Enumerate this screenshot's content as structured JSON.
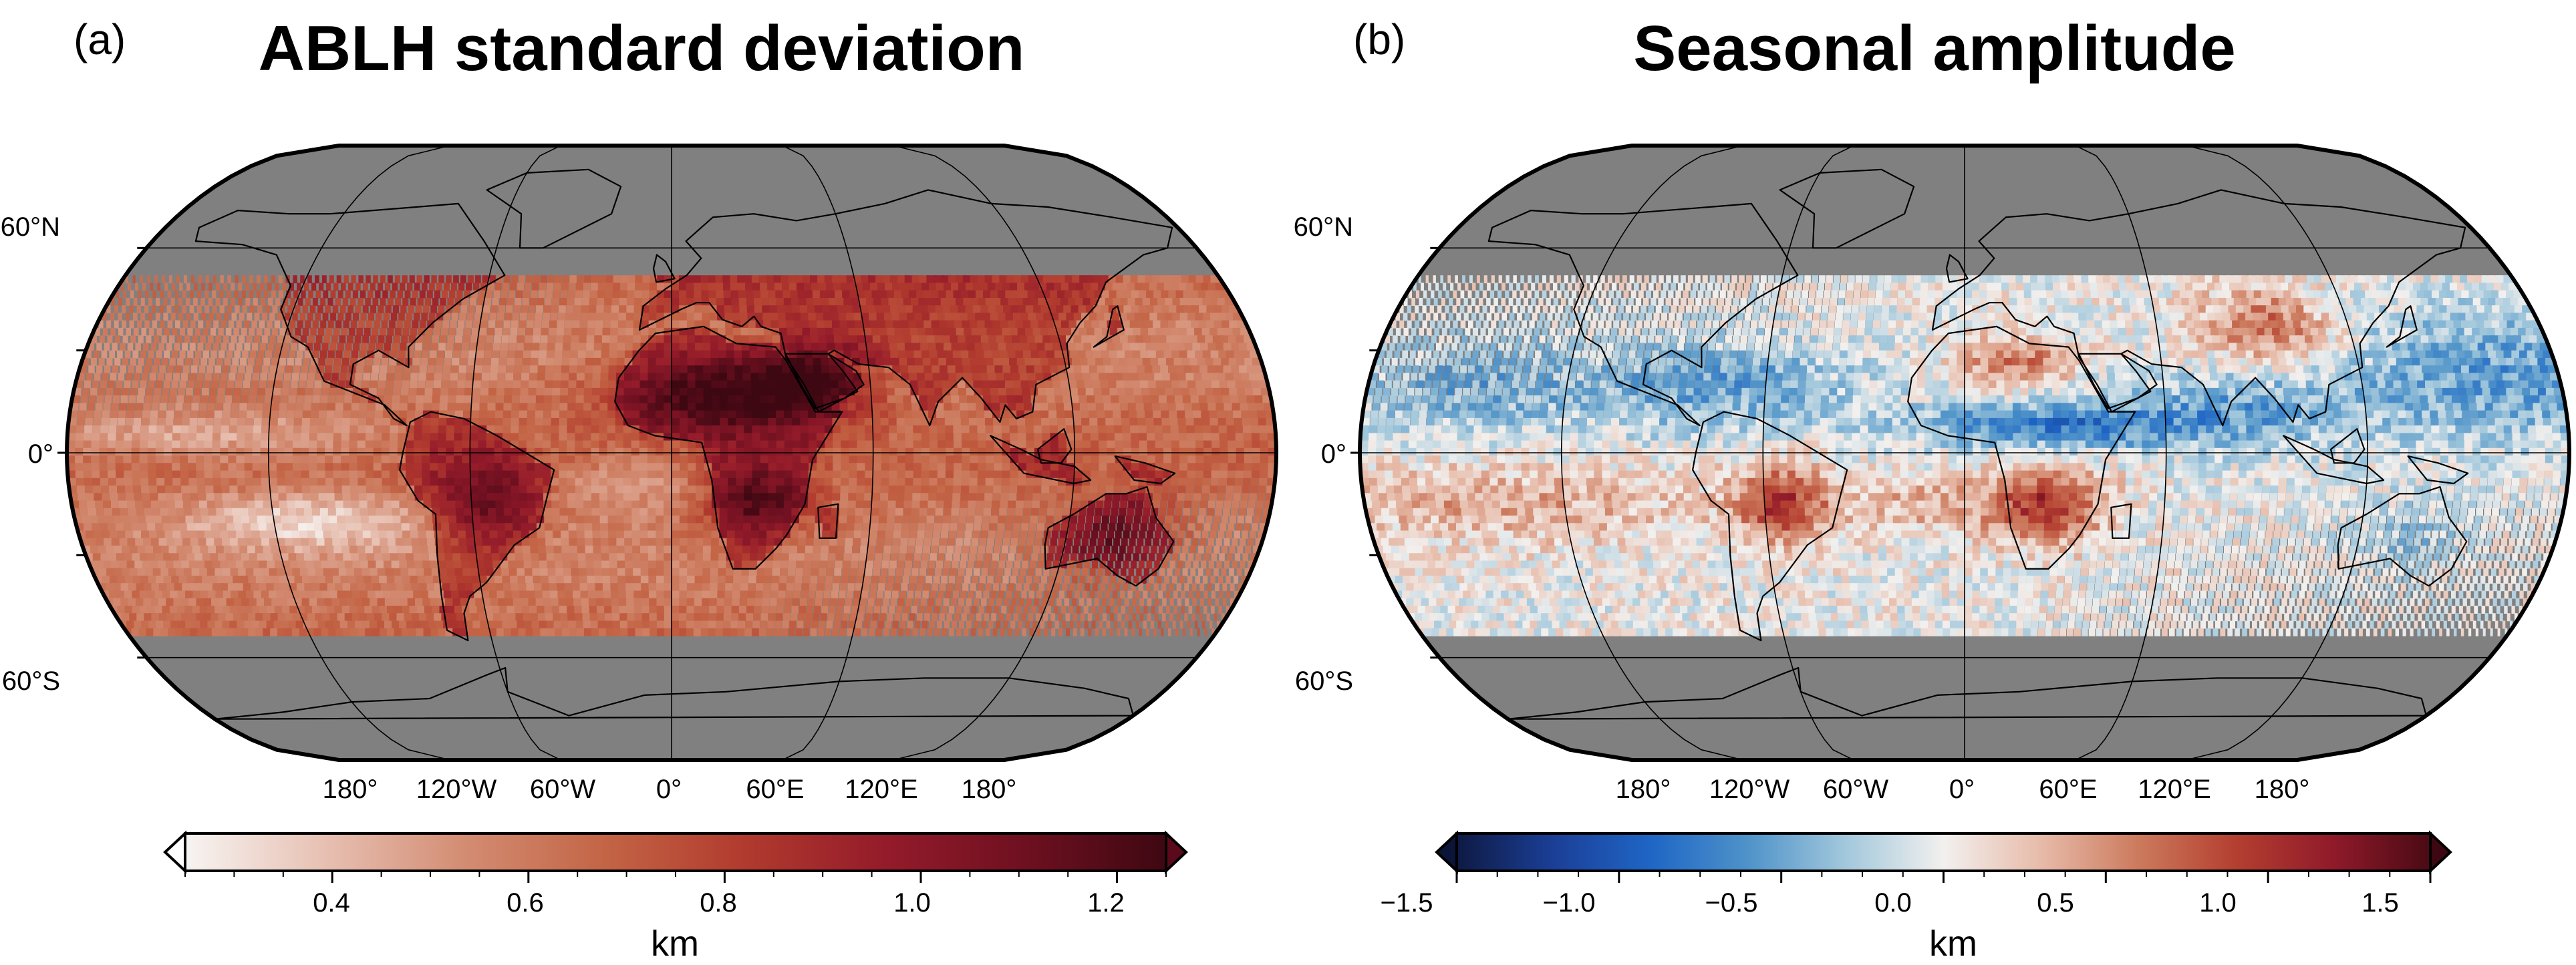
{
  "panels": [
    {
      "letter": "(a)",
      "title": "ABLH standard deviation",
      "lat_labels": [
        "60°N",
        "0°",
        "60°S"
      ],
      "lon_labels": [
        "180°",
        "120°W",
        "60°W",
        "0°",
        "60°E",
        "120°E",
        "180°"
      ],
      "colorbar": {
        "colormap": "white-to-darkred",
        "colors": [
          "#f7f4f2",
          "#e7c0b2",
          "#d38c72",
          "#c36445",
          "#b13a2e",
          "#941b2a",
          "#6e1020",
          "#3e0812"
        ],
        "min": 0.25,
        "max": 1.25,
        "ticks": [
          "0.4",
          "0.6",
          "0.8",
          "1.0",
          "1.2"
        ],
        "tick_values": [
          0.4,
          0.6,
          0.8,
          1.0,
          1.2
        ],
        "extend_low_color": "#ffffff",
        "extend_high_color": "#5a0a1a",
        "unit": "km"
      },
      "field": "std"
    },
    {
      "letter": "(b)",
      "title": "Seasonal amplitude",
      "lat_labels": [
        "60°N",
        "0°",
        "60°S"
      ],
      "lon_labels": [
        "180°",
        "120°W",
        "60°W",
        "0°",
        "60°E",
        "120°E",
        "180°"
      ],
      "colorbar": {
        "colormap": "diverging-blue-red",
        "colors": [
          "#0e1a44",
          "#1b3f97",
          "#1f66c6",
          "#4f93c9",
          "#a3c8dc",
          "#f2f0ee",
          "#e7bba9",
          "#cc7a5d",
          "#b43f30",
          "#901a2a",
          "#4a0a14"
        ],
        "min": -1.5,
        "max": 1.5,
        "ticks": [
          "−1.5",
          "−1.0",
          "−0.5",
          "0.0",
          "0.5",
          "1.0",
          "1.5"
        ],
        "tick_values": [
          -1.5,
          -1.0,
          -0.5,
          0.0,
          0.5,
          1.0,
          1.5
        ],
        "extend_low_color": "#0b1538",
        "extend_high_color": "#3e0812",
        "unit": "km"
      },
      "field": "amp"
    }
  ],
  "map_colors": {
    "no_data": "#808080",
    "coastline": "#000000",
    "graticule": "#000000"
  }
}
